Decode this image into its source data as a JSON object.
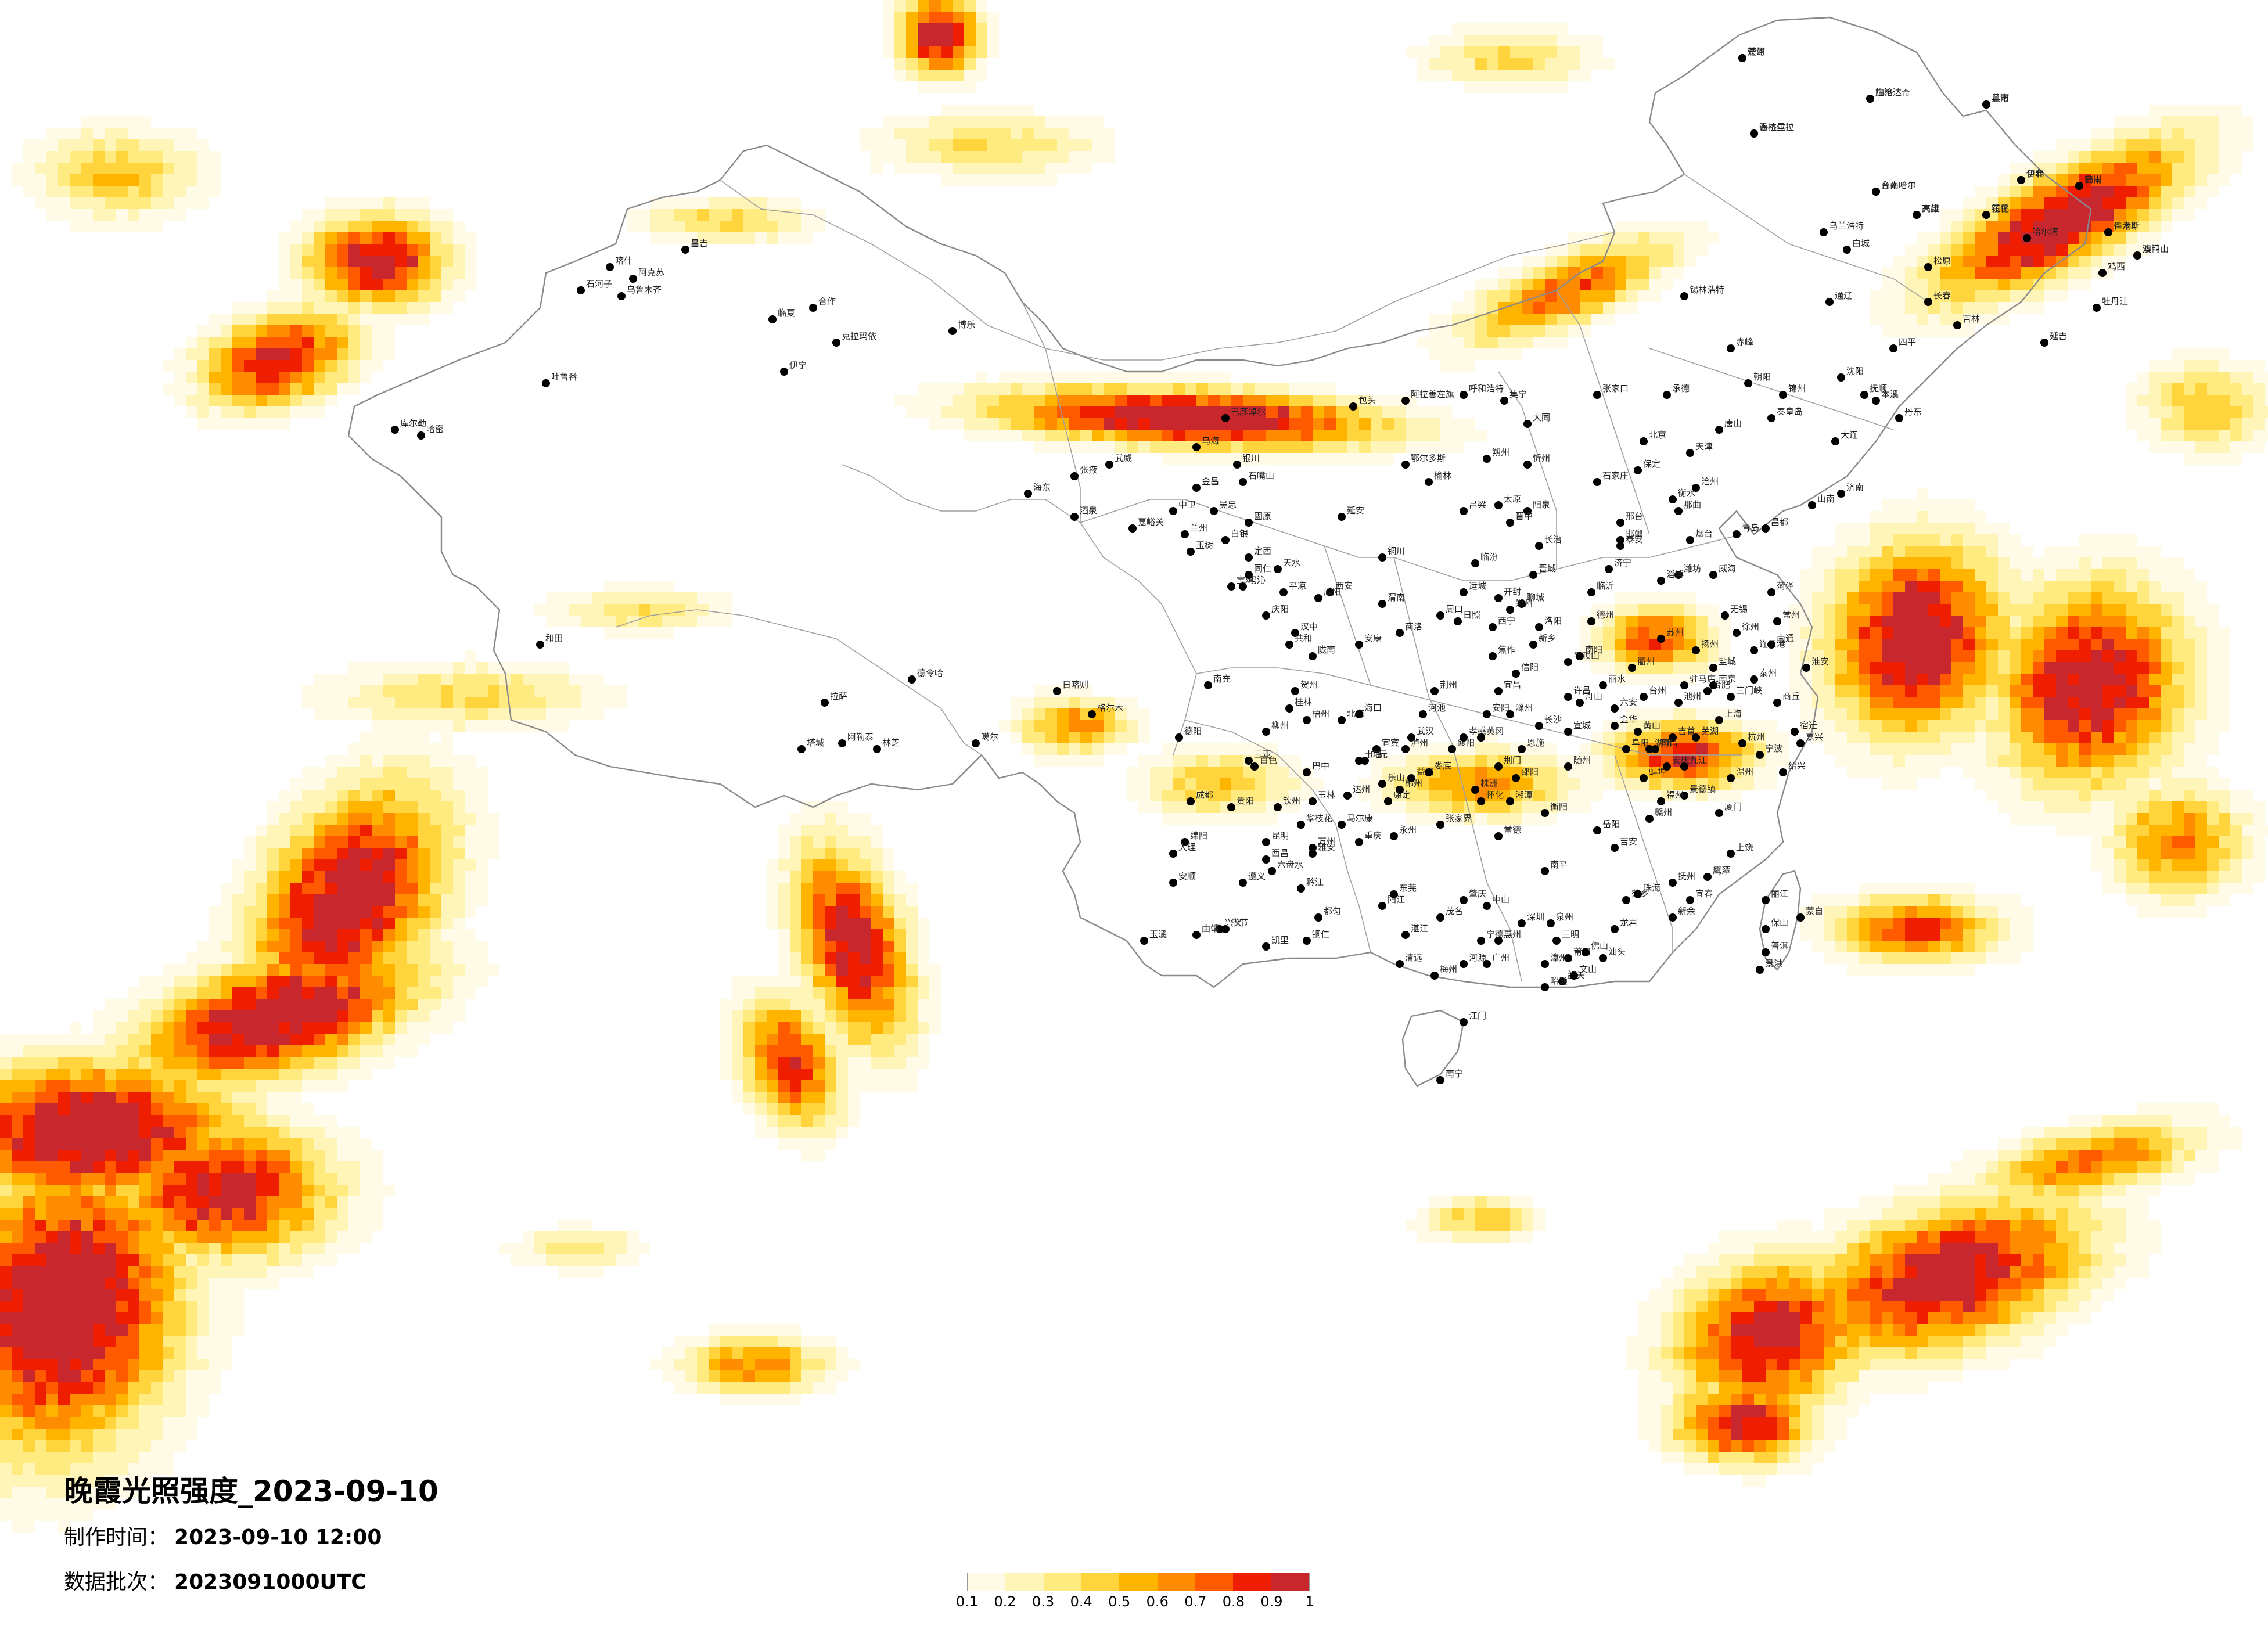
{
  "title": "晚霞光照强度_2023-09-10",
  "made_time": {
    "label": "制作时间：",
    "value": "2023-09-10 12:00"
  },
  "batch": {
    "label": "数据批次：",
    "value": "2023091000UTC"
  },
  "legend": {
    "colors": [
      "#fffbe6",
      "#fff5b8",
      "#ffeb80",
      "#ffd43d",
      "#ffb400",
      "#ff8c00",
      "#ff5a00",
      "#f01e00",
      "#c8282d"
    ],
    "ticks": [
      "0.1",
      "0.2",
      "0.3",
      "0.4",
      "0.5",
      "0.6",
      "0.7",
      "0.8",
      "0.9",
      "1"
    ]
  },
  "cities": [
    {
      "name": "漠河"
    },
    {
      "name": "加格达奇"
    },
    {
      "name": "黑河"
    },
    {
      "name": "海拉尔"
    },
    {
      "name": "伊春"
    },
    {
      "name": "鹤岗"
    },
    {
      "name": "齐齐哈尔"
    },
    {
      "name": "大庆"
    },
    {
      "name": "绥化"
    },
    {
      "name": "佳木斯"
    },
    {
      "name": "双鸭山"
    },
    {
      "name": "哈尔滨"
    },
    {
      "name": "乌兰浩特"
    },
    {
      "name": "白城"
    },
    {
      "name": "松原"
    },
    {
      "name": "鸡西"
    },
    {
      "name": "牡丹江"
    },
    {
      "name": "长春"
    },
    {
      "name": "吉林"
    },
    {
      "name": "四平"
    },
    {
      "name": "通辽"
    },
    {
      "name": "锡林浩特"
    },
    {
      "name": "赤峰"
    },
    {
      "name": "延吉"
    },
    {
      "name": "沈阳"
    },
    {
      "name": "抚顺"
    },
    {
      "name": "本溪"
    },
    {
      "name": "丹东"
    },
    {
      "name": "大连"
    },
    {
      "name": "锦州"
    },
    {
      "name": "朝阳"
    },
    {
      "name": "承德"
    },
    {
      "name": "张家口"
    },
    {
      "name": "呼和浩特"
    },
    {
      "name": "包头"
    },
    {
      "name": "集宁"
    },
    {
      "name": "北京"
    },
    {
      "name": "天津"
    },
    {
      "name": "唐山"
    },
    {
      "name": "秦皇岛"
    },
    {
      "name": "保定"
    },
    {
      "name": "石家庄"
    },
    {
      "name": "沧州"
    },
    {
      "name": "衡水"
    },
    {
      "name": "邢台"
    },
    {
      "name": "邯郸"
    },
    {
      "name": "大同"
    },
    {
      "name": "朔州"
    },
    {
      "name": "忻州"
    },
    {
      "name": "太原"
    },
    {
      "name": "阳泉"
    },
    {
      "name": "晋中"
    },
    {
      "name": "吕梁"
    },
    {
      "name": "长治"
    },
    {
      "name": "晋城"
    },
    {
      "name": "临汾"
    },
    {
      "name": "运城"
    },
    {
      "name": "鄂尔多斯"
    },
    {
      "name": "榆林"
    },
    {
      "name": "延安"
    },
    {
      "name": "铜川"
    },
    {
      "name": "西安"
    },
    {
      "name": "宝鸡"
    },
    {
      "name": "咸阳"
    },
    {
      "name": "渭南"
    },
    {
      "name": "汉中"
    },
    {
      "name": "安康"
    },
    {
      "name": "商洛"
    },
    {
      "name": "乌海"
    },
    {
      "name": "巴彦淖尔"
    },
    {
      "name": "银川"
    },
    {
      "name": "石嘴山"
    },
    {
      "name": "吴忠"
    },
    {
      "name": "中卫"
    },
    {
      "name": "固原"
    },
    {
      "name": "兰州"
    },
    {
      "name": "白银"
    },
    {
      "name": "定西"
    },
    {
      "name": "天水"
    },
    {
      "name": "平凉"
    },
    {
      "name": "庆阳"
    },
    {
      "name": "陇南"
    },
    {
      "name": "武威"
    },
    {
      "name": "张掖"
    },
    {
      "name": "金昌"
    },
    {
      "name": "酒泉"
    },
    {
      "name": "嘉峪关"
    },
    {
      "name": "阿拉善左旗"
    },
    {
      "name": "西宁"
    },
    {
      "name": "海东"
    },
    {
      "name": "德令哈"
    },
    {
      "name": "格尔木"
    },
    {
      "name": "玉树"
    },
    {
      "name": "共和"
    },
    {
      "name": "玛沁"
    },
    {
      "name": "同仁"
    },
    {
      "name": "合作"
    },
    {
      "name": "临夏"
    },
    {
      "name": "乌鲁木齐"
    },
    {
      "name": "昌吉"
    },
    {
      "name": "石河子"
    },
    {
      "name": "克拉玛依"
    },
    {
      "name": "博乐"
    },
    {
      "name": "伊宁"
    },
    {
      "name": "吐鲁番"
    },
    {
      "name": "哈密"
    },
    {
      "name": "库尔勒"
    },
    {
      "name": "阿克苏"
    },
    {
      "name": "喀什"
    },
    {
      "name": "和田"
    },
    {
      "name": "阿勒泰"
    },
    {
      "name": "塔城"
    },
    {
      "name": "噶尔"
    },
    {
      "name": "拉萨"
    },
    {
      "name": "日喀则"
    },
    {
      "name": "林芝"
    },
    {
      "name": "那曲"
    },
    {
      "name": "昌都"
    },
    {
      "name": "山南"
    },
    {
      "name": "济南"
    },
    {
      "name": "青岛"
    },
    {
      "name": "烟台"
    },
    {
      "name": "威海"
    },
    {
      "name": "潍坊"
    },
    {
      "name": "淄博"
    },
    {
      "name": "临沂"
    },
    {
      "name": "济宁"
    },
    {
      "name": "泰安"
    },
    {
      "name": "菏泽"
    },
    {
      "name": "聊城"
    },
    {
      "name": "德州"
    },
    {
      "name": "日照"
    },
    {
      "name": "郑州"
    },
    {
      "name": "开封"
    },
    {
      "name": "洛阳"
    },
    {
      "name": "新乡"
    },
    {
      "name": "焦作"
    },
    {
      "name": "安阳"
    },
    {
      "name": "许昌"
    },
    {
      "name": "平顶山"
    },
    {
      "name": "南阳"
    },
    {
      "name": "信阳"
    },
    {
      "name": "周口"
    },
    {
      "name": "驻马店"
    },
    {
      "name": "商丘"
    },
    {
      "name": "三门峡"
    },
    {
      "name": "南京"
    },
    {
      "name": "苏州"
    },
    {
      "name": "无锡"
    },
    {
      "name": "常州"
    },
    {
      "name": "徐州"
    },
    {
      "name": "连云港"
    },
    {
      "name": "盐城"
    },
    {
      "name": "扬州"
    },
    {
      "name": "南通"
    },
    {
      "name": "淮安"
    },
    {
      "name": "泰州"
    },
    {
      "name": "宿迁"
    },
    {
      "name": "上海"
    },
    {
      "name": "杭州"
    },
    {
      "name": "宁波"
    },
    {
      "name": "温州"
    },
    {
      "name": "绍兴"
    },
    {
      "name": "嘉兴"
    },
    {
      "name": "湖州"
    },
    {
      "name": "金华"
    },
    {
      "name": "台州"
    },
    {
      "name": "丽水"
    },
    {
      "name": "衢州"
    },
    {
      "name": "舟山"
    },
    {
      "name": "合肥"
    },
    {
      "name": "芜湖"
    },
    {
      "name": "蚌埠"
    },
    {
      "name": "安庆"
    },
    {
      "name": "阜阳"
    },
    {
      "name": "黄山"
    },
    {
      "name": "六安"
    },
    {
      "name": "宣城"
    },
    {
      "name": "池州"
    },
    {
      "name": "滁州"
    },
    {
      "name": "武汉"
    },
    {
      "name": "宜昌"
    },
    {
      "name": "襄阳"
    },
    {
      "name": "荆州"
    },
    {
      "name": "十堰"
    },
    {
      "name": "恩施"
    },
    {
      "name": "黄冈"
    },
    {
      "name": "孝感"
    },
    {
      "name": "荆门"
    },
    {
      "name": "随州"
    },
    {
      "name": "长沙"
    },
    {
      "name": "株洲"
    },
    {
      "name": "湘潭"
    },
    {
      "name": "衡阳"
    },
    {
      "name": "岳阳"
    },
    {
      "name": "常德"
    },
    {
      "name": "张家界"
    },
    {
      "name": "怀化"
    },
    {
      "name": "邵阳"
    },
    {
      "name": "永州"
    },
    {
      "name": "郴州"
    },
    {
      "name": "益阳"
    },
    {
      "name": "娄底"
    },
    {
      "name": "吉首"
    },
    {
      "name": "南昌"
    },
    {
      "name": "九江"
    },
    {
      "name": "景德镇"
    },
    {
      "name": "上饶"
    },
    {
      "name": "鹰潭"
    },
    {
      "name": "抚州"
    },
    {
      "name": "宜春"
    },
    {
      "name": "新余"
    },
    {
      "name": "萍乡"
    },
    {
      "name": "吉安"
    },
    {
      "name": "赣州"
    },
    {
      "name": "福州"
    },
    {
      "name": "厦门"
    },
    {
      "name": "泉州"
    },
    {
      "name": "莆田"
    },
    {
      "name": "漳州"
    },
    {
      "name": "龙岩"
    },
    {
      "name": "三明"
    },
    {
      "name": "南平"
    },
    {
      "name": "宁德"
    },
    {
      "name": "广州"
    },
    {
      "name": "深圳"
    },
    {
      "name": "珠海"
    },
    {
      "name": "汕头"
    },
    {
      "name": "佛山"
    },
    {
      "name": "韶关"
    },
    {
      "name": "湛江"
    },
    {
      "name": "茂名"
    },
    {
      "name": "肇庆"
    },
    {
      "name": "惠州"
    },
    {
      "name": "梅州"
    },
    {
      "name": "清远"
    },
    {
      "name": "河源"
    },
    {
      "name": "阳江"
    },
    {
      "name": "东莞"
    },
    {
      "name": "中山"
    },
    {
      "name": "江门"
    },
    {
      "name": "南宁"
    },
    {
      "name": "柳州"
    },
    {
      "name": "桂林"
    },
    {
      "name": "梧州"
    },
    {
      "name": "北海"
    },
    {
      "name": "钦州"
    },
    {
      "name": "玉林"
    },
    {
      "name": "百色"
    },
    {
      "name": "河池"
    },
    {
      "name": "贺州"
    },
    {
      "name": "海口"
    },
    {
      "name": "三亚"
    },
    {
      "name": "成都"
    },
    {
      "name": "绵阳"
    },
    {
      "name": "德阳"
    },
    {
      "name": "南充"
    },
    {
      "name": "宜宾"
    },
    {
      "name": "泸州"
    },
    {
      "name": "乐山"
    },
    {
      "name": "达州"
    },
    {
      "name": "广元"
    },
    {
      "name": "巴中"
    },
    {
      "name": "雅安"
    },
    {
      "name": "西昌"
    },
    {
      "name": "攀枝花"
    },
    {
      "name": "康定"
    },
    {
      "name": "马尔康"
    },
    {
      "name": "重庆"
    },
    {
      "name": "万州"
    },
    {
      "name": "黔江"
    },
    {
      "name": "贵阳"
    },
    {
      "name": "遵义"
    },
    {
      "name": "六盘水"
    },
    {
      "name": "安顺"
    },
    {
      "name": "毕节"
    },
    {
      "name": "铜仁"
    },
    {
      "name": "凯里"
    },
    {
      "name": "都匀"
    },
    {
      "name": "兴义"
    },
    {
      "name": "昆明"
    },
    {
      "name": "曲靖"
    },
    {
      "name": "玉溪"
    },
    {
      "name": "大理"
    },
    {
      "name": "丽江"
    },
    {
      "name": "保山"
    },
    {
      "name": "普洱"
    },
    {
      "name": "景洪"
    },
    {
      "name": "蒙自"
    },
    {
      "name": "文山"
    },
    {
      "name": "昭通"
    },
    {
      "name": "楚雄"
    },
    {
      "name": "临沧"
    },
    {
      "name": "芒市"
    },
    {
      "name": "香格里拉"
    },
    {
      "name": "台北"
    },
    {
      "name": "台中"
    },
    {
      "name": "台南"
    },
    {
      "name": "高雄"
    },
    {
      "name": "花莲"
    },
    {
      "name": "香港"
    },
    {
      "name": "澳门"
    }
  ]
}
